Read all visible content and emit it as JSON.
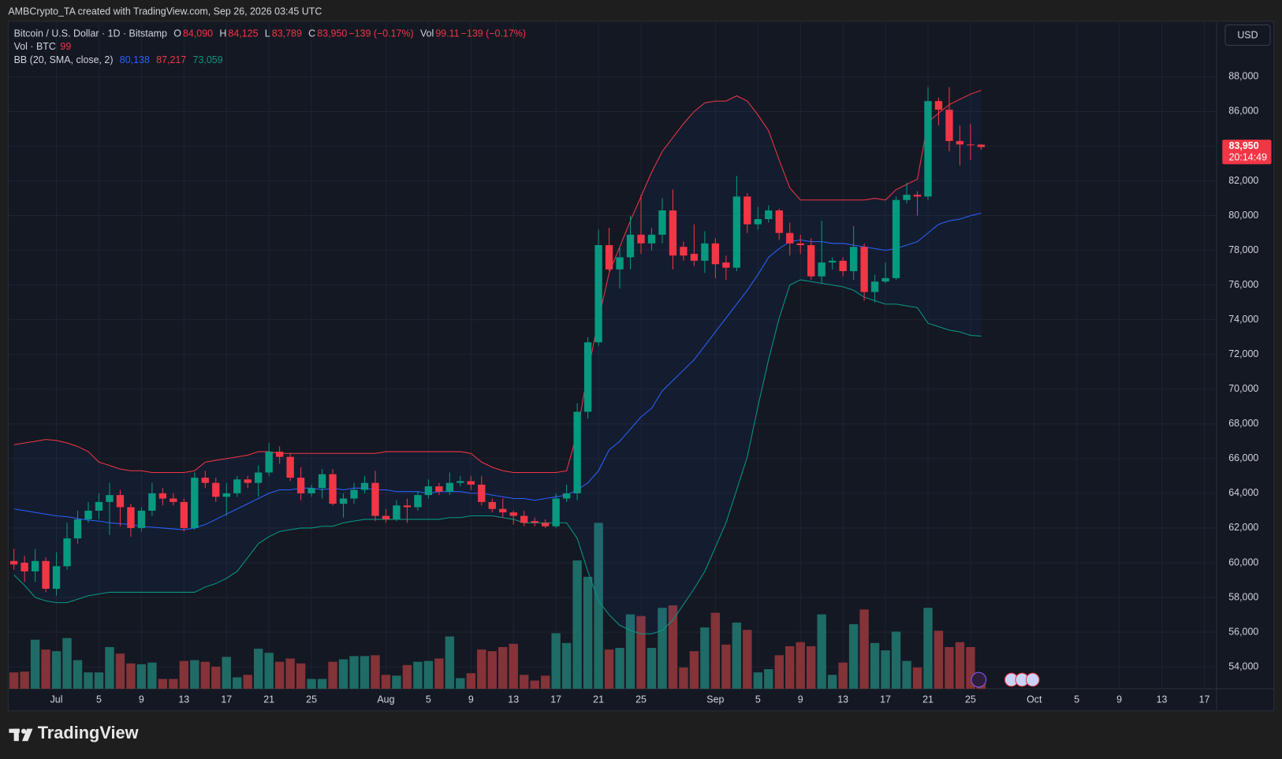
{
  "chart_data": {
    "type": "candlestick",
    "caption": "AMBCrypto_TA created with TradingView.com, Sep 26, 2026 03:45 UTC",
    "title": "Bitcoin / U.S. Dollar · 1D · Bitstamp",
    "currency": "USD",
    "brand": "TradingView",
    "legend": [
      {
        "label": "O",
        "value": "84,090"
      },
      {
        "label": "H",
        "value": "84,125"
      },
      {
        "label": "L",
        "value": "83,789"
      },
      {
        "label": "C",
        "value": "83,950"
      },
      {
        "value": "−139 (−0.17%)"
      },
      {
        "label": "Vol",
        "value": "99.11"
      },
      {
        "value": "−139 (−0.17%)"
      }
    ],
    "volume_label": "Vol · BTC",
    "volume_last": "99",
    "bb_label": "BB (20, SMA, close, 2)",
    "up_color": "#089981",
    "down_color": "#f23645",
    "volume_up_color": "#1f6b65",
    "volume_down_color": "#843338",
    "categories": [
      "Jun 27",
      "Jun 28",
      "Jun 29",
      "Jun 30",
      "Jul 1",
      "Jul 2",
      "Jul 3",
      "Jul 4",
      "Jul 5",
      "Jul 6",
      "Jul 7",
      "Jul 8",
      "Jul 9",
      "Jul 10",
      "Jul 11",
      "Jul 12",
      "Jul 13",
      "Jul 14",
      "Jul 15",
      "Jul 16",
      "Jul 17",
      "Jul 18",
      "Jul 19",
      "Jul 20",
      "Jul 21",
      "Jul 22",
      "Jul 23",
      "Jul 24",
      "Jul 25",
      "Jul 26",
      "Jul 27",
      "Jul 28",
      "Jul 29",
      "Jul 30",
      "Jul 31",
      "Aug 1",
      "Aug 2",
      "Aug 3",
      "Aug 4",
      "Aug 5",
      "Aug 6",
      "Aug 7",
      "Aug 8",
      "Aug 9",
      "Aug 10",
      "Aug 11",
      "Aug 12",
      "Aug 13",
      "Aug 14",
      "Aug 15",
      "Aug 16",
      "Aug 17",
      "Aug 18",
      "Aug 19",
      "Aug 20",
      "Aug 21",
      "Aug 22",
      "Aug 23",
      "Aug 24",
      "Aug 25",
      "Aug 26",
      "Aug 27",
      "Aug 28",
      "Aug 29",
      "Aug 30",
      "Aug 31",
      "Sep 1",
      "Sep 2",
      "Sep 3",
      "Sep 4",
      "Sep 5",
      "Sep 6",
      "Sep 7",
      "Sep 8",
      "Sep 9",
      "Sep 10",
      "Sep 11",
      "Sep 12",
      "Sep 13",
      "Sep 14",
      "Sep 15",
      "Sep 16",
      "Sep 17",
      "Sep 18",
      "Sep 19",
      "Sep 20",
      "Sep 21",
      "Sep 22",
      "Sep 23",
      "Sep 24",
      "Sep 25",
      "Sep 26"
    ],
    "open": [
      60100,
      60000,
      59500,
      60100,
      58500,
      59800,
      61400,
      62500,
      63000,
      63500,
      63900,
      63200,
      62000,
      63000,
      64000,
      63700,
      63500,
      62000,
      64900,
      64600,
      63800,
      64000,
      64800,
      64600,
      65200,
      66400,
      66100,
      64900,
      64000,
      64300,
      65100,
      63400,
      63700,
      64200,
      64600,
      62700,
      62500,
      63300,
      63200,
      63900,
      64400,
      64100,
      64600,
      64700,
      64500,
      63500,
      63100,
      62900,
      62700,
      62400,
      62300,
      62100,
      63700,
      64000,
      68700,
      72700,
      78300,
      76900,
      77600,
      78900,
      78400,
      78900,
      80300,
      78200,
      77800,
      77400,
      78400,
      77300,
      77000,
      81100,
      79500,
      79800,
      80300,
      79000,
      78400,
      78300,
      76500,
      77300,
      77400,
      76800,
      78200,
      75600,
      76200,
      76400,
      80900,
      81200,
      81100,
      86600,
      86100,
      84300,
      84100,
      84090
    ],
    "high": [
      60800,
      60400,
      60800,
      60300,
      60600,
      62300,
      63000,
      63500,
      64000,
      64600,
      64200,
      63400,
      63200,
      64600,
      64300,
      64000,
      63700,
      65200,
      65300,
      64900,
      64600,
      65000,
      65000,
      65600,
      66900,
      66700,
      66300,
      65500,
      64500,
      65400,
      65400,
      64000,
      64600,
      65000,
      65300,
      63100,
      63600,
      63700,
      64100,
      64800,
      64600,
      65200,
      65000,
      65000,
      65000,
      63700,
      63700,
      63000,
      63000,
      62600,
      62500,
      64000,
      64500,
      69200,
      73000,
      79200,
      79300,
      78200,
      80000,
      81200,
      79300,
      81000,
      81500,
      78500,
      79500,
      79100,
      78700,
      77700,
      82300,
      81300,
      80500,
      80600,
      80400,
      79600,
      78900,
      78700,
      79700,
      77600,
      77600,
      79400,
      78400,
      76600,
      77300,
      81100,
      81900,
      81400,
      87400,
      86800,
      87400,
      85200,
      85300,
      84125
    ],
    "low": [
      59600,
      58900,
      58900,
      58300,
      58100,
      59600,
      61100,
      62300,
      62500,
      61600,
      62100,
      61500,
      61800,
      62700,
      63300,
      63300,
      61800,
      61900,
      64300,
      63500,
      62700,
      63800,
      64300,
      63800,
      65000,
      65700,
      64700,
      63600,
      63800,
      63700,
      63300,
      62600,
      63400,
      64000,
      62400,
      62300,
      62400,
      62300,
      63000,
      63700,
      63900,
      63900,
      64400,
      64200,
      63300,
      62900,
      62600,
      62200,
      62100,
      62100,
      62000,
      62000,
      63500,
      63600,
      68300,
      72500,
      76800,
      75800,
      76900,
      77800,
      78000,
      78400,
      76900,
      77400,
      77100,
      76700,
      76400,
      76300,
      76800,
      79000,
      79200,
      79600,
      78600,
      77700,
      77800,
      76300,
      76100,
      76900,
      76500,
      76300,
      75100,
      75000,
      76100,
      76300,
      80700,
      80000,
      80900,
      85200,
      83700,
      82900,
      83200,
      83789
    ],
    "close": [
      59900,
      59500,
      60100,
      58500,
      59800,
      61400,
      62500,
      63000,
      63500,
      63900,
      63200,
      62000,
      63000,
      64000,
      63700,
      63500,
      62000,
      64900,
      64600,
      63800,
      64000,
      64800,
      64600,
      65200,
      66400,
      66100,
      64900,
      64000,
      64300,
      65100,
      63400,
      63700,
      64200,
      64600,
      62700,
      62500,
      63300,
      63200,
      63900,
      64400,
      64100,
      64600,
      64700,
      64500,
      63500,
      63100,
      62900,
      62700,
      62300,
      62300,
      62100,
      63700,
      64000,
      68700,
      72700,
      78300,
      76900,
      77600,
      78900,
      78400,
      78900,
      80300,
      77700,
      77700,
      77400,
      78400,
      77200,
      77000,
      81100,
      79500,
      79800,
      80300,
      79000,
      78400,
      78300,
      76500,
      77300,
      77400,
      76800,
      78200,
      75600,
      76200,
      76400,
      80900,
      81200,
      81100,
      86600,
      86100,
      84300,
      84100,
      84090,
      83950
    ],
    "volume": [
      200,
      210,
      600,
      480,
      460,
      620,
      350,
      200,
      200,
      510,
      430,
      310,
      300,
      320,
      120,
      120,
      340,
      350,
      330,
      270,
      390,
      140,
      170,
      490,
      440,
      330,
      370,
      310,
      120,
      120,
      330,
      360,
      400,
      400,
      410,
      170,
      160,
      290,
      330,
      340,
      370,
      640,
      130,
      190,
      480,
      460,
      510,
      550,
      170,
      100,
      160,
      680,
      560,
      1570,
      1370,
      2030,
      480,
      500,
      910,
      890,
      500,
      990,
      1020,
      260,
      460,
      750,
      930,
      540,
      810,
      720,
      200,
      240,
      410,
      520,
      570,
      520,
      910,
      170,
      320,
      790,
      970,
      560,
      470,
      700,
      340,
      260,
      990,
      710,
      510,
      570,
      510,
      99.11
    ],
    "bands": [
      {
        "color": "#2962ff",
        "last_label": "80,138",
        "values": [
          63100,
          63000,
          62900,
          62800,
          62700,
          62650,
          62550,
          62450,
          62400,
          62300,
          62250,
          62200,
          62100,
          62050,
          62000,
          61950,
          61900,
          62000,
          62200,
          62500,
          62800,
          63100,
          63400,
          63700,
          64000,
          64200,
          64200,
          64300,
          64300,
          64200,
          64300,
          64200,
          64300,
          64300,
          64200,
          64200,
          64100,
          64100,
          64100,
          64000,
          64100,
          64100,
          64100,
          64000,
          64000,
          63900,
          63800,
          63700,
          63700,
          63600,
          63700,
          63800,
          63900,
          64200,
          64600,
          65300,
          66500,
          67000,
          67700,
          68400,
          68900,
          69900,
          70500,
          71100,
          71700,
          72500,
          73300,
          74100,
          74900,
          75700,
          76600,
          77600,
          78100,
          78500,
          78600,
          78500,
          78500,
          78400,
          78400,
          78300,
          78200,
          78100,
          78000,
          78100,
          78300,
          78500,
          79000,
          79500,
          79700,
          79800,
          80000,
          80138
        ]
      },
      {
        "color": "#f23645",
        "last_label": "87,217",
        "values": [
          66800,
          66900,
          67000,
          67100,
          67050,
          66900,
          66700,
          66400,
          65800,
          65600,
          65400,
          65300,
          65300,
          65200,
          65200,
          65200,
          65200,
          65300,
          65800,
          65900,
          66000,
          66100,
          66200,
          66400,
          66400,
          66300,
          66300,
          66300,
          66300,
          66300,
          66300,
          66300,
          66300,
          66300,
          66300,
          66400,
          66400,
          66400,
          66400,
          66400,
          66400,
          66400,
          66400,
          66300,
          65800,
          65500,
          65300,
          65200,
          65200,
          65200,
          65200,
          65200,
          65300,
          67500,
          71000,
          74000,
          76700,
          78200,
          79700,
          81100,
          82500,
          83700,
          84500,
          85300,
          86000,
          86500,
          86600,
          86600,
          86900,
          86600,
          85800,
          84900,
          83200,
          81600,
          80900,
          80900,
          80900,
          80900,
          80900,
          80900,
          80900,
          81000,
          80900,
          81500,
          81800,
          82100,
          85400,
          85900,
          86400,
          86700,
          87000,
          87217
        ]
      },
      {
        "color": "#089981",
        "last_label": "73,059",
        "values": [
          59300,
          58700,
          58000,
          57800,
          57700,
          57700,
          57900,
          58100,
          58200,
          58300,
          58300,
          58300,
          58300,
          58300,
          58300,
          58300,
          58300,
          58300,
          58600,
          58800,
          59100,
          59500,
          60300,
          61100,
          61500,
          61800,
          61900,
          62000,
          62000,
          62100,
          62100,
          62300,
          62400,
          62500,
          62500,
          62500,
          62500,
          62500,
          62500,
          62500,
          62500,
          62600,
          62600,
          62700,
          62700,
          62700,
          62600,
          62500,
          62300,
          62300,
          62300,
          62300,
          62300,
          61400,
          59500,
          57800,
          57000,
          56400,
          56100,
          55900,
          55900,
          56100,
          56700,
          57600,
          58500,
          59500,
          60900,
          62300,
          64200,
          66100,
          69000,
          71700,
          74100,
          76000,
          76300,
          76200,
          76100,
          76000,
          75900,
          75700,
          75300,
          75100,
          74900,
          74900,
          74800,
          74700,
          73800,
          73600,
          73400,
          73300,
          73100,
          73059
        ]
      }
    ],
    "band_fill": "#2962ff",
    "last_price": {
      "value": 83950,
      "label": "83,950"
    },
    "countdown": "20:14:49",
    "ylim": [
      52740,
      91200
    ],
    "yticks": [
      {
        "value": 54000,
        "label": "54,000"
      },
      {
        "value": 56000,
        "label": "56,000"
      },
      {
        "value": 58000,
        "label": "58,000"
      },
      {
        "value": 60000,
        "label": "60,000"
      },
      {
        "value": 62000,
        "label": "62,000"
      },
      {
        "value": 64000,
        "label": "64,000"
      },
      {
        "value": 66000,
        "label": "66,000"
      },
      {
        "value": 68000,
        "label": "68,000"
      },
      {
        "value": 70000,
        "label": "70,000"
      },
      {
        "value": 72000,
        "label": "72,000"
      },
      {
        "value": 74000,
        "label": "74,000"
      },
      {
        "value": 76000,
        "label": "76,000"
      },
      {
        "value": 78000,
        "label": "78,000"
      },
      {
        "value": 80000,
        "label": "80,000"
      },
      {
        "value": 82000,
        "label": "82,000"
      },
      {
        "value": 84000,
        "label": "84,000"
      },
      {
        "value": 86000,
        "label": "86,000"
      },
      {
        "value": 88000,
        "label": "88,000"
      }
    ],
    "xticks": [
      {
        "value": 4,
        "label": "Jul"
      },
      {
        "value": 8,
        "label": "5"
      },
      {
        "value": 12,
        "label": "9"
      },
      {
        "value": 16,
        "label": "13"
      },
      {
        "value": 20,
        "label": "17"
      },
      {
        "value": 24,
        "label": "21"
      },
      {
        "value": 28,
        "label": "25"
      },
      {
        "value": 35,
        "label": "Aug"
      },
      {
        "value": 39,
        "label": "5"
      },
      {
        "value": 43,
        "label": "9"
      },
      {
        "value": 47,
        "label": "13"
      },
      {
        "value": 51,
        "label": "17"
      },
      {
        "value": 55,
        "label": "21"
      },
      {
        "value": 59,
        "label": "25"
      },
      {
        "value": 66,
        "label": "Sep"
      },
      {
        "value": 70,
        "label": "5"
      },
      {
        "value": 74,
        "label": "9"
      },
      {
        "value": 78,
        "label": "13"
      },
      {
        "value": 82,
        "label": "17"
      },
      {
        "value": 86,
        "label": "21"
      },
      {
        "value": 90,
        "label": "25"
      },
      {
        "value": 96,
        "label": "Oct"
      },
      {
        "value": 100,
        "label": "5"
      },
      {
        "value": 104,
        "label": "9"
      },
      {
        "value": 108,
        "label": "13"
      },
      {
        "value": 112,
        "label": "17"
      }
    ],
    "grid": true
  }
}
